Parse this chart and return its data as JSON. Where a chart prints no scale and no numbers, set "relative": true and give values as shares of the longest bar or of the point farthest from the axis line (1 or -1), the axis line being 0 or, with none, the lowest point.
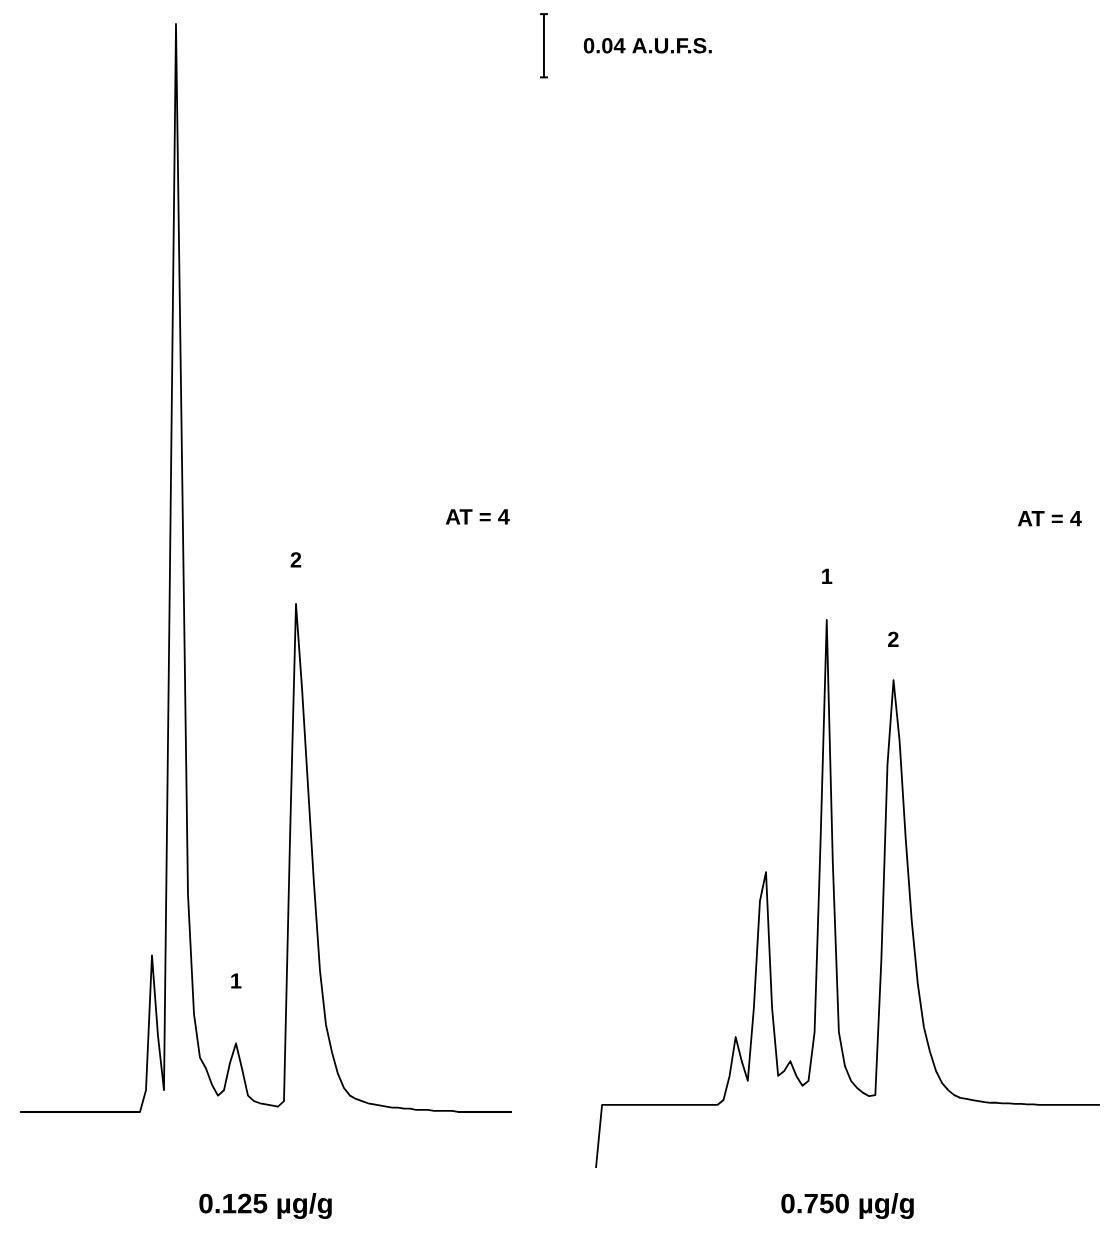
{
  "chart_data": [
    {
      "type": "line",
      "relative": true,
      "xlabel": "0.125 µg/g",
      "annotations": [
        "AT = 4",
        "0.04 A.U.F.S.",
        "1",
        "2"
      ],
      "categories": [
        null,
        null,
        null,
        null,
        null,
        null,
        null,
        null,
        null,
        null,
        null,
        null,
        null,
        null,
        null,
        null,
        null,
        null,
        null,
        null,
        null,
        null,
        null,
        null,
        null,
        null,
        null,
        null,
        null,
        null,
        null,
        null,
        null,
        null,
        null,
        null,
        null,
        null,
        null,
        null,
        null,
        null,
        null,
        null,
        null,
        null,
        null,
        null,
        null,
        null,
        null,
        null,
        null,
        null,
        null,
        null,
        null,
        null,
        null,
        null,
        null,
        null,
        null,
        null,
        null,
        null,
        null,
        null,
        null,
        null,
        null,
        null,
        null,
        null,
        null,
        null,
        null,
        null,
        null,
        null,
        null,
        null,
        null
      ],
      "series": [
        {
          "color": "#000000",
          "values": [
            0,
            0,
            0,
            0,
            0,
            0,
            0,
            0,
            0,
            0,
            0,
            0,
            0,
            0,
            0,
            0,
            0,
            0,
            0,
            0,
            0,
            0.02,
            0.144,
            0.07,
            0.02,
            0.5,
            1.0,
            0.6,
            0.2,
            0.09,
            0.05,
            0.04,
            0.025,
            0.015,
            0.02,
            0.045,
            0.063,
            0.04,
            0.015,
            0.01,
            0.008,
            0.007,
            0.006,
            0.005,
            0.01,
            0.25,
            0.467,
            0.39,
            0.3,
            0.21,
            0.13,
            0.08,
            0.055,
            0.035,
            0.022,
            0.015,
            0.012,
            0.01,
            0.008,
            0.007,
            0.006,
            0.005,
            0.004,
            0.004,
            0.003,
            0.003,
            0.002,
            0.002,
            0.002,
            0.001,
            0.001,
            0.001,
            0.001,
            0,
            0,
            0,
            0,
            0,
            0,
            0,
            0,
            0,
            0
          ]
        }
      ]
    },
    {
      "type": "line",
      "relative": true,
      "xlabel": "0.750 µg/g",
      "annotations": [
        "AT = 4",
        "1",
        "2"
      ],
      "categories": [
        null,
        null,
        null,
        null,
        null,
        null,
        null,
        null,
        null,
        null,
        null,
        null,
        null,
        null,
        null,
        null,
        null,
        null,
        null,
        null,
        null,
        null,
        null,
        null,
        null,
        null,
        null,
        null,
        null,
        null,
        null,
        null,
        null,
        null,
        null,
        null,
        null,
        null,
        null,
        null,
        null,
        null,
        null,
        null,
        null,
        null,
        null,
        null,
        null,
        null,
        null,
        null,
        null,
        null,
        null,
        null,
        null,
        null,
        null,
        null,
        null,
        null,
        null,
        null,
        null,
        null,
        null,
        null,
        null,
        null,
        null,
        null,
        null,
        null,
        null,
        null,
        null,
        null,
        null,
        null,
        null,
        null,
        null,
        null
      ],
      "series": [
        {
          "color": "#000000",
          "values": [
            0,
            0.115,
            0.115,
            0.115,
            0.115,
            0.115,
            0.115,
            0.115,
            0.115,
            0.115,
            0.115,
            0.115,
            0.115,
            0.115,
            0.115,
            0.115,
            0.115,
            0.115,
            0.115,
            0.115,
            0.115,
            0.124,
            0.168,
            0.239,
            0.195,
            0.159,
            0.292,
            0.487,
            0.54,
            0.292,
            0.168,
            0.177,
            0.195,
            0.168,
            0.15,
            0.159,
            0.248,
            0.602,
            1.0,
            0.558,
            0.248,
            0.186,
            0.159,
            0.146,
            0.137,
            0.131,
            0.133,
            0.381,
            0.735,
            0.89,
            0.779,
            0.602,
            0.451,
            0.336,
            0.257,
            0.212,
            0.177,
            0.155,
            0.142,
            0.133,
            0.128,
            0.126,
            0.124,
            0.122,
            0.12,
            0.119,
            0.119,
            0.118,
            0.118,
            0.117,
            0.117,
            0.116,
            0.116,
            0.115,
            0.115,
            0.115,
            0.115,
            0.115,
            0.115,
            0.115,
            0.115,
            0.115,
            0.115,
            0.115
          ]
        }
      ]
    }
  ]
}
